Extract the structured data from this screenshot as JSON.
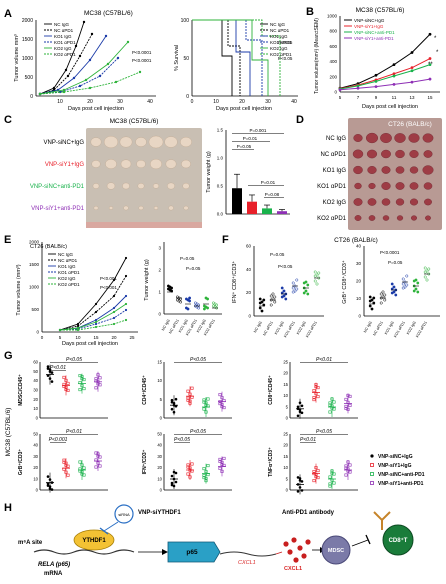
{
  "colors": {
    "nc": "#000000",
    "siy": "#e8202a",
    "pd1": "#19b24b",
    "comb": "#8e2fb5",
    "ko1": "#1a3aa8",
    "ko2": "#2db33a",
    "photoBg": "#c2b9ad",
    "photoBg2": "#b8a09a",
    "tumor": "#d8c4b4",
    "tumor2": "#b04a52"
  },
  "panels": {
    "A": "A",
    "B": "B",
    "C": "C",
    "D": "D",
    "E": "E",
    "F": "F",
    "G": "G",
    "H": "H"
  },
  "A": {
    "title": "MC38 (C57BL/6)",
    "ylabel": "Tumor volume mm³",
    "xlabel": "Days post cell injection",
    "xticks": [
      "10",
      "20",
      "30",
      "40"
    ],
    "yticks": [
      "0",
      "500",
      "1000",
      "1500",
      "2000"
    ],
    "legend": [
      "NC IgG",
      "NC αPD1",
      "KO1 IgG",
      "KO1 αPD1",
      "KO2 IgG",
      "KO2 αPD1"
    ],
    "pvals": [
      "P<0.0001",
      "P<0.0001"
    ],
    "survival": {
      "ylabel": "% Survival",
      "xlabel": "Days post cell injection",
      "xticks": [
        "0",
        "10",
        "20",
        "30",
        "40"
      ],
      "yticks": [
        "0",
        "50",
        "100"
      ],
      "legend": [
        "NC IgG",
        "NC αPD1",
        "KO1 IgG",
        "KO1 αPD1",
        "KO2 IgG",
        "KO2 αPD1"
      ],
      "pvals": [
        "P<0.05",
        "P<0.05"
      ]
    }
  },
  "B": {
    "title": "MC38 (C57BL/6)",
    "ylabel": "Tumor volume(mm³) (Mean±SEM)",
    "xlabel": "Days post cell injection",
    "xticks": [
      "5",
      "7",
      "9",
      "11",
      "13",
      "15"
    ],
    "yticks": [
      "0",
      "200",
      "400",
      "600",
      "800",
      "1000"
    ],
    "legend": [
      "VNP-siNC+IgG",
      "VNP-siY1+IgG",
      "VNP-siNC+anti-PD1",
      "VNP-siY1+anti-PD1"
    ],
    "sig": [
      "*",
      "*",
      "**"
    ],
    "chart_data": {
      "type": "line",
      "x": [
        5,
        7,
        9,
        11,
        13,
        15
      ],
      "series": [
        {
          "name": "VNP-siNC+IgG",
          "values": [
            50,
            110,
            220,
            360,
            520,
            760
          ]
        },
        {
          "name": "VNP-siY1+IgG",
          "values": [
            45,
            90,
            160,
            240,
            320,
            440
          ]
        },
        {
          "name": "VNP-siNC+anti-PD1",
          "values": [
            40,
            80,
            140,
            210,
            280,
            360
          ]
        },
        {
          "name": "VNP-siY1+anti-PD1",
          "values": [
            30,
            50,
            70,
            100,
            130,
            170
          ]
        }
      ],
      "ylim": [
        0,
        1000
      ]
    }
  },
  "C": {
    "title": "MC38 (C57BL/6)",
    "rows": [
      "VNP-siNC+IgG",
      "VNP-siY1+IgG",
      "VNP-siNC+anti-PD1",
      "VNP-siY1+anti-PD1"
    ],
    "bar": {
      "ylabel": "Tumor weight (g)",
      "yticks": [
        "0.0",
        "0.5",
        "1.0",
        "1.5"
      ],
      "pvals": [
        "P=0.001",
        "P=0.01",
        "P=0.05",
        "P=0.01",
        "P=0.08"
      ],
      "chart_data": {
        "type": "bar",
        "categories": [
          "VNP-siNC+IgG",
          "VNP-siY1+IgG",
          "VNP-siNC+anti-PD1",
          "VNP-siY1+anti-PD1"
        ],
        "values": [
          0.46,
          0.22,
          0.1,
          0.05
        ],
        "errors": [
          0.25,
          0.12,
          0.06,
          0.03
        ],
        "ylim": [
          0,
          1.5
        ]
      }
    }
  },
  "D": {
    "title": "CT26 (BALB/c)",
    "rows": [
      "NC IgG",
      "NC αPD1",
      "KO1 IgG",
      "KO1 αPD1",
      "KO2 IgG",
      "KO2 αPD1"
    ]
  },
  "E": {
    "title": "CT26 (BALB/c)",
    "ylabel": "Tumor volume (mm³)",
    "xlabel": "Days post cell injection",
    "xticks": [
      "0",
      "5",
      "10",
      "15",
      "20",
      "25"
    ],
    "yticks": [
      "0",
      "500",
      "1000",
      "1500",
      "2000"
    ],
    "legend": [
      "NC IgG",
      "NC αPD1",
      "KO1 IgG",
      "KO1 αPD1",
      "KO2 IgG",
      "KO2 αPD1"
    ],
    "pvals": [
      "P<0.001",
      "P<0.001"
    ],
    "weight": {
      "ylabel": "Tumor weight (g)",
      "yticks": [
        "0",
        "1",
        "2",
        "3"
      ],
      "cats": [
        "NC IgG",
        "NC αPD1",
        "KO1 IgG",
        "KO1 αPD1",
        "KO2 IgG",
        "KO2 αPD1"
      ],
      "pvals": [
        "P=0.05",
        "P=0.05"
      ]
    }
  },
  "F": {
    "title": "CT26 (BALB/c)",
    "left": {
      "ylabel": "IFN⁺ CD8⁺/CD3⁺",
      "yticks": [
        "0",
        "20",
        "40",
        "60"
      ],
      "pvals": [
        "P=0.05",
        "P<0.05"
      ]
    },
    "right": {
      "ylabel": "GrB⁺ CD8⁺/CD3⁺",
      "yticks": [
        "0",
        "10",
        "20",
        "30",
        "40"
      ],
      "pvals": [
        "P<0.0001",
        "P=0.05"
      ]
    },
    "cats": [
      "NC IgG",
      "NC αPD1",
      "KO1 IgG",
      "KO1 αPD1",
      "KO2 IgG",
      "KO2 αPD1"
    ]
  },
  "G": {
    "side": "MC38 (C57BL/6)",
    "plots": [
      {
        "ylabel": "MDSC/CD45⁺",
        "yticks": [
          "0",
          "10",
          "20",
          "30",
          "40",
          "50",
          "60"
        ],
        "pvals": [
          "P<0.05",
          "P<0.01"
        ]
      },
      {
        "ylabel": "CD4⁺/CD45⁺",
        "yticks": [
          "0",
          "5",
          "10",
          "15"
        ],
        "pvals": [
          "P<0.05"
        ]
      },
      {
        "ylabel": "CD8⁺/CD45⁺",
        "yticks": [
          "0",
          "5",
          "10",
          "15",
          "20",
          "25"
        ],
        "pvals": [
          "P<0.01"
        ]
      },
      {
        "ylabel": "GrB⁺/CD3⁺",
        "yticks": [
          "0",
          "10",
          "20",
          "30",
          "40",
          "50"
        ],
        "pvals": [
          "P<0.01",
          "P<0.001"
        ]
      },
      {
        "ylabel": "IFN⁺/CD3⁺",
        "yticks": [
          "0",
          "10",
          "20",
          "30",
          "40",
          "50"
        ],
        "pvals": [
          "P<0.05",
          "P<0.05"
        ]
      },
      {
        "ylabel": "TNFα⁺/CD3⁺",
        "yticks": [
          "0",
          "5",
          "10",
          "15",
          "20",
          "25"
        ],
        "pvals": [
          "P<0.05",
          "P<0.01"
        ]
      }
    ],
    "legend": [
      "VNP-siNC+IgG",
      "VNP-siY1+IgG",
      "VNP-siNC+anti-PD1",
      "VNP-siY1+anti-PD1"
    ]
  },
  "H": {
    "vnp": "VNP-siYTHDF1",
    "antipd1": "Anti-PD1 antibody",
    "siRNA": "siRNA",
    "m6a": "m⁶A site",
    "ythdf1": "YTHDF1",
    "rela": "RELA (p65)",
    "mrna": "mRNA",
    "p65": "p65",
    "cxcl1": "CXCL1",
    "cxcl1b": "CXCL1",
    "mdsc": "MDSC",
    "cd8": "CD8⁺T"
  }
}
